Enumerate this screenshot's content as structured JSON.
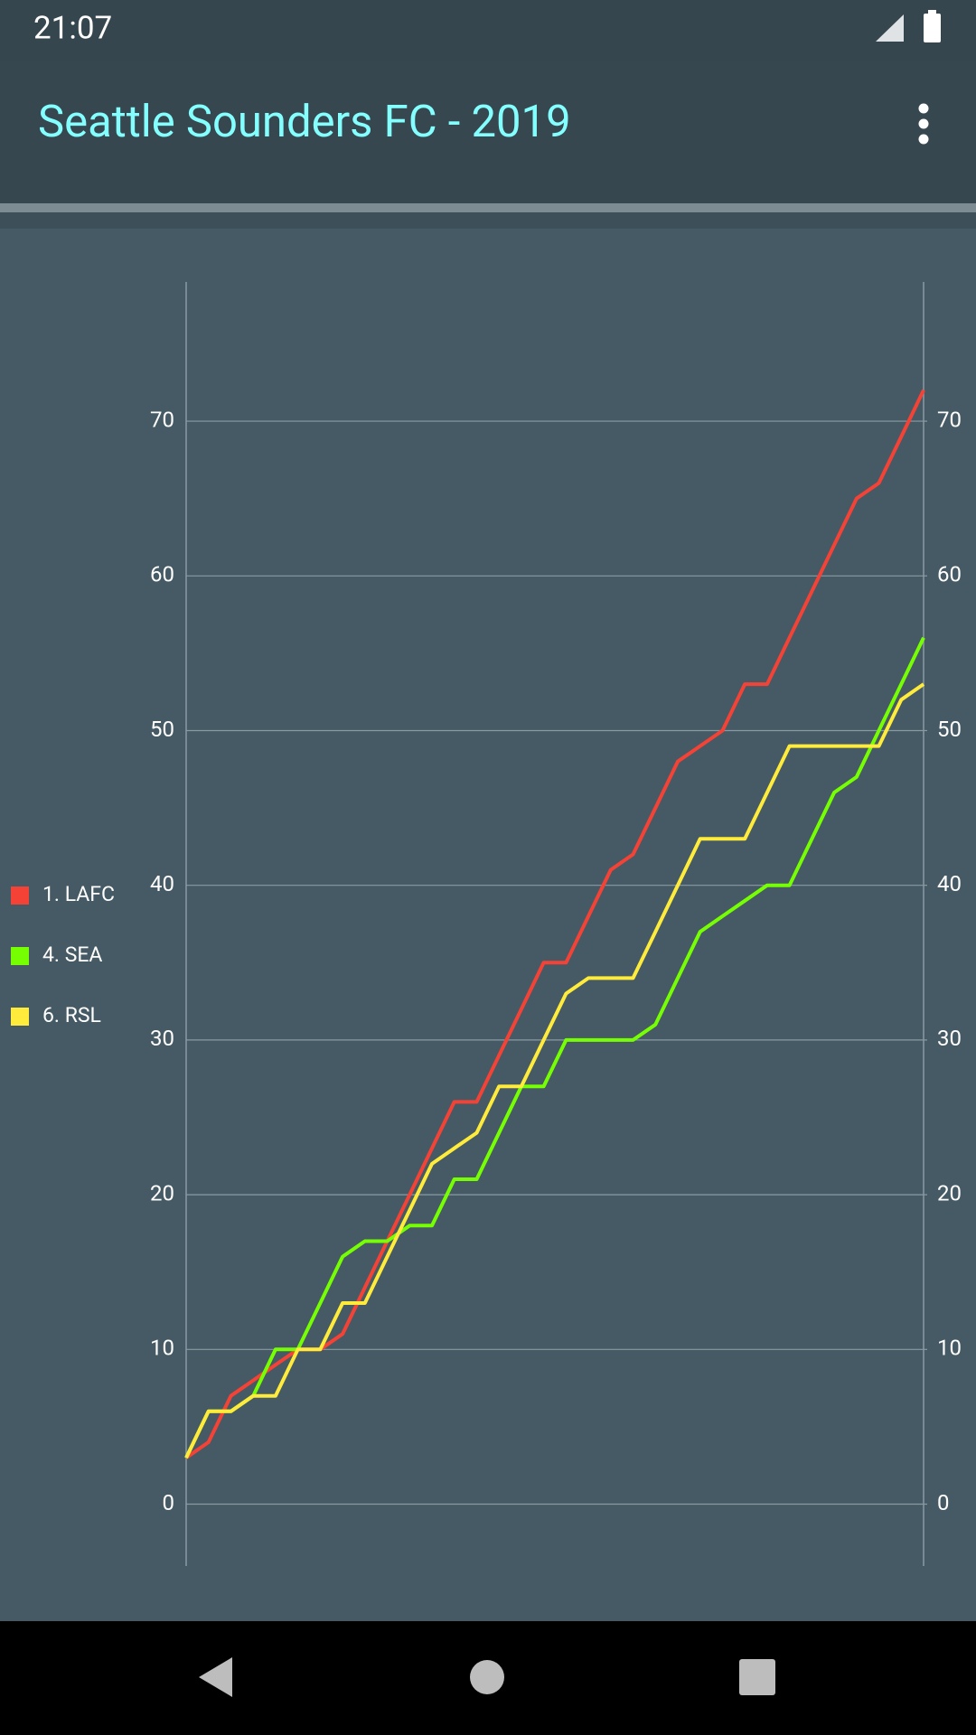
{
  "status_bar": {
    "time": "21:07"
  },
  "app_bar": {
    "title": "Seattle Sounders FC - 2019"
  },
  "chart_data": {
    "type": "line",
    "categories": [
      null,
      null,
      null,
      null,
      null,
      null,
      null,
      null,
      null,
      null,
      null,
      null,
      null,
      null,
      null,
      null,
      null,
      null,
      null,
      null,
      null,
      null,
      null,
      null,
      null,
      null,
      null,
      null,
      null,
      null,
      null,
      null,
      null,
      null
    ],
    "series": [
      {
        "name": "1. LAFC",
        "color": "#f44336",
        "values": [
          3,
          4,
          7,
          8,
          9,
          10,
          10,
          11,
          14,
          17,
          20,
          23,
          26,
          26,
          29,
          32,
          35,
          35,
          38,
          41,
          42,
          45,
          48,
          49,
          50,
          53,
          53,
          56,
          59,
          62,
          65,
          66,
          69,
          72
        ]
      },
      {
        "name": "4. SEA",
        "color": "#76ff03",
        "values": [
          3,
          6,
          6,
          7,
          10,
          10,
          13,
          16,
          17,
          17,
          18,
          18,
          21,
          21,
          24,
          27,
          27,
          30,
          30,
          30,
          30,
          31,
          34,
          37,
          38,
          39,
          40,
          40,
          43,
          46,
          47,
          50,
          53,
          56
        ]
      },
      {
        "name": "6. RSL",
        "color": "#ffeb3b",
        "values": [
          3,
          6,
          6,
          7,
          7,
          10,
          10,
          13,
          13,
          16,
          19,
          22,
          23,
          24,
          27,
          27,
          30,
          33,
          34,
          34,
          34,
          37,
          40,
          43,
          43,
          43,
          46,
          49,
          49,
          49,
          49,
          49,
          52,
          53
        ]
      }
    ],
    "ylim": [
      -4,
      79
    ],
    "yticks": [
      0,
      10,
      20,
      30,
      40,
      50,
      60,
      70
    ],
    "y2lim": [
      -4,
      79
    ],
    "y2ticks": [
      0,
      10,
      20,
      30,
      40,
      50,
      60,
      70
    ],
    "grid": true,
    "legend": "left"
  }
}
